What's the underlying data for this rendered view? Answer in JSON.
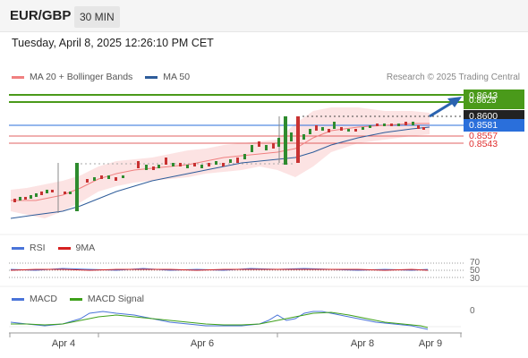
{
  "header": {
    "pair": "EUR/GBP",
    "timeframe": "30 MIN"
  },
  "timestamp": "Tuesday, April 8, 2025 12:26:10 PM CET",
  "legend_main": [
    {
      "label": "MA 20 + Bollinger Bands",
      "color": "#f08080"
    },
    {
      "label": "MA 50",
      "color": "#2e5c9a"
    }
  ],
  "research": "Research © 2025 Trading Central",
  "price_levels": {
    "target": "0.8643",
    "hidden_target": "0.8625",
    "resistance": "0.8600",
    "current": "0.8581",
    "support1": "0.8557",
    "support2": "0.8543"
  },
  "legend_rsi": [
    {
      "label": "RSI",
      "color": "#4a74d9"
    },
    {
      "label": "9MA",
      "color": "#d62020"
    }
  ],
  "rsi_levels": [
    "70",
    "50",
    "30"
  ],
  "legend_macd": [
    {
      "label": "MACD",
      "color": "#4a74d9"
    },
    {
      "label": "MACD Signal",
      "color": "#3ea01a"
    }
  ],
  "macd_zero": "0",
  "x_axis": [
    "Apr 4",
    "Apr 6",
    "Apr 8",
    "Apr 9"
  ],
  "colors": {
    "up": "#2e8b2e",
    "down": "#c83232",
    "target_green": "#4a9a1a",
    "current_blue": "#2a6fdb",
    "resistance_dark": "#222222",
    "support_red": "#e03030",
    "arrow": "#2a63b0"
  }
}
